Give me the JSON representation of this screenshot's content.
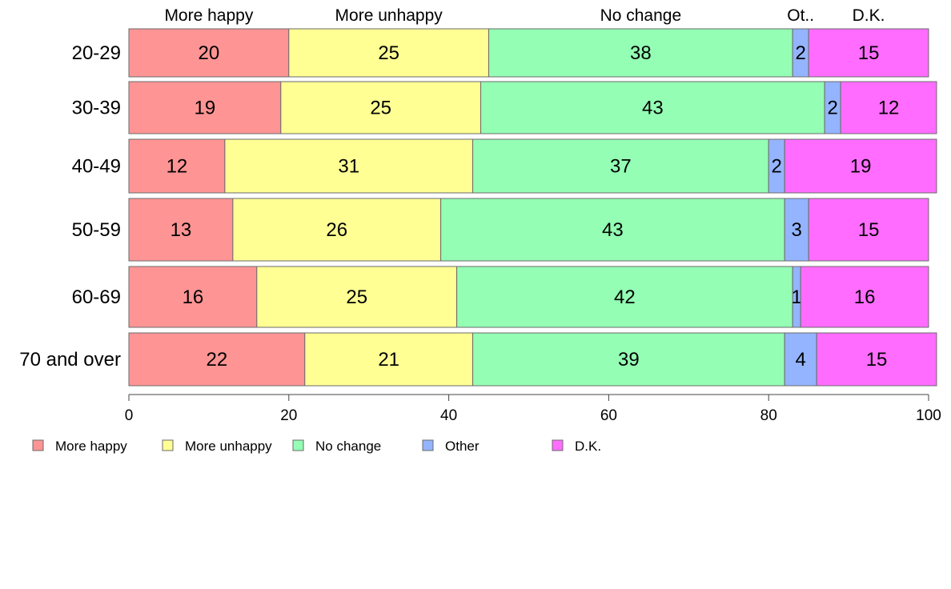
{
  "chart_data": {
    "type": "bar",
    "orientation": "horizontal",
    "stacked": true,
    "categories": [
      "20-29",
      "30-39",
      "40-49",
      "50-59",
      "60-69",
      "70 and over"
    ],
    "series": [
      {
        "name": "More happy",
        "values": [
          20,
          19,
          12,
          13,
          16,
          22
        ],
        "color": "#ff9494"
      },
      {
        "name": "More unhappy",
        "values": [
          25,
          25,
          31,
          26,
          25,
          21
        ],
        "color": "#ffff94"
      },
      {
        "name": "No change",
        "values": [
          38,
          43,
          37,
          43,
          42,
          39
        ],
        "color": "#94ffb4"
      },
      {
        "name": "Other",
        "values": [
          2,
          2,
          2,
          3,
          1,
          4
        ],
        "color": "#94b4ff"
      },
      {
        "name": "D.K.",
        "values": [
          15,
          12,
          19,
          15,
          16,
          15
        ],
        "color": "#ff6cff"
      }
    ],
    "top_labels": [
      "More happy",
      "More unhappy",
      "No change",
      "Ot..",
      "D.K."
    ],
    "xlim": [
      0,
      100
    ],
    "x_ticks": [
      "0",
      "20",
      "40",
      "60",
      "80",
      "100"
    ],
    "legend": {
      "placement": "bottom-left",
      "entries": [
        "More happy",
        "More unhappy",
        "No change",
        "Other",
        "D.K."
      ]
    },
    "grid": false
  }
}
